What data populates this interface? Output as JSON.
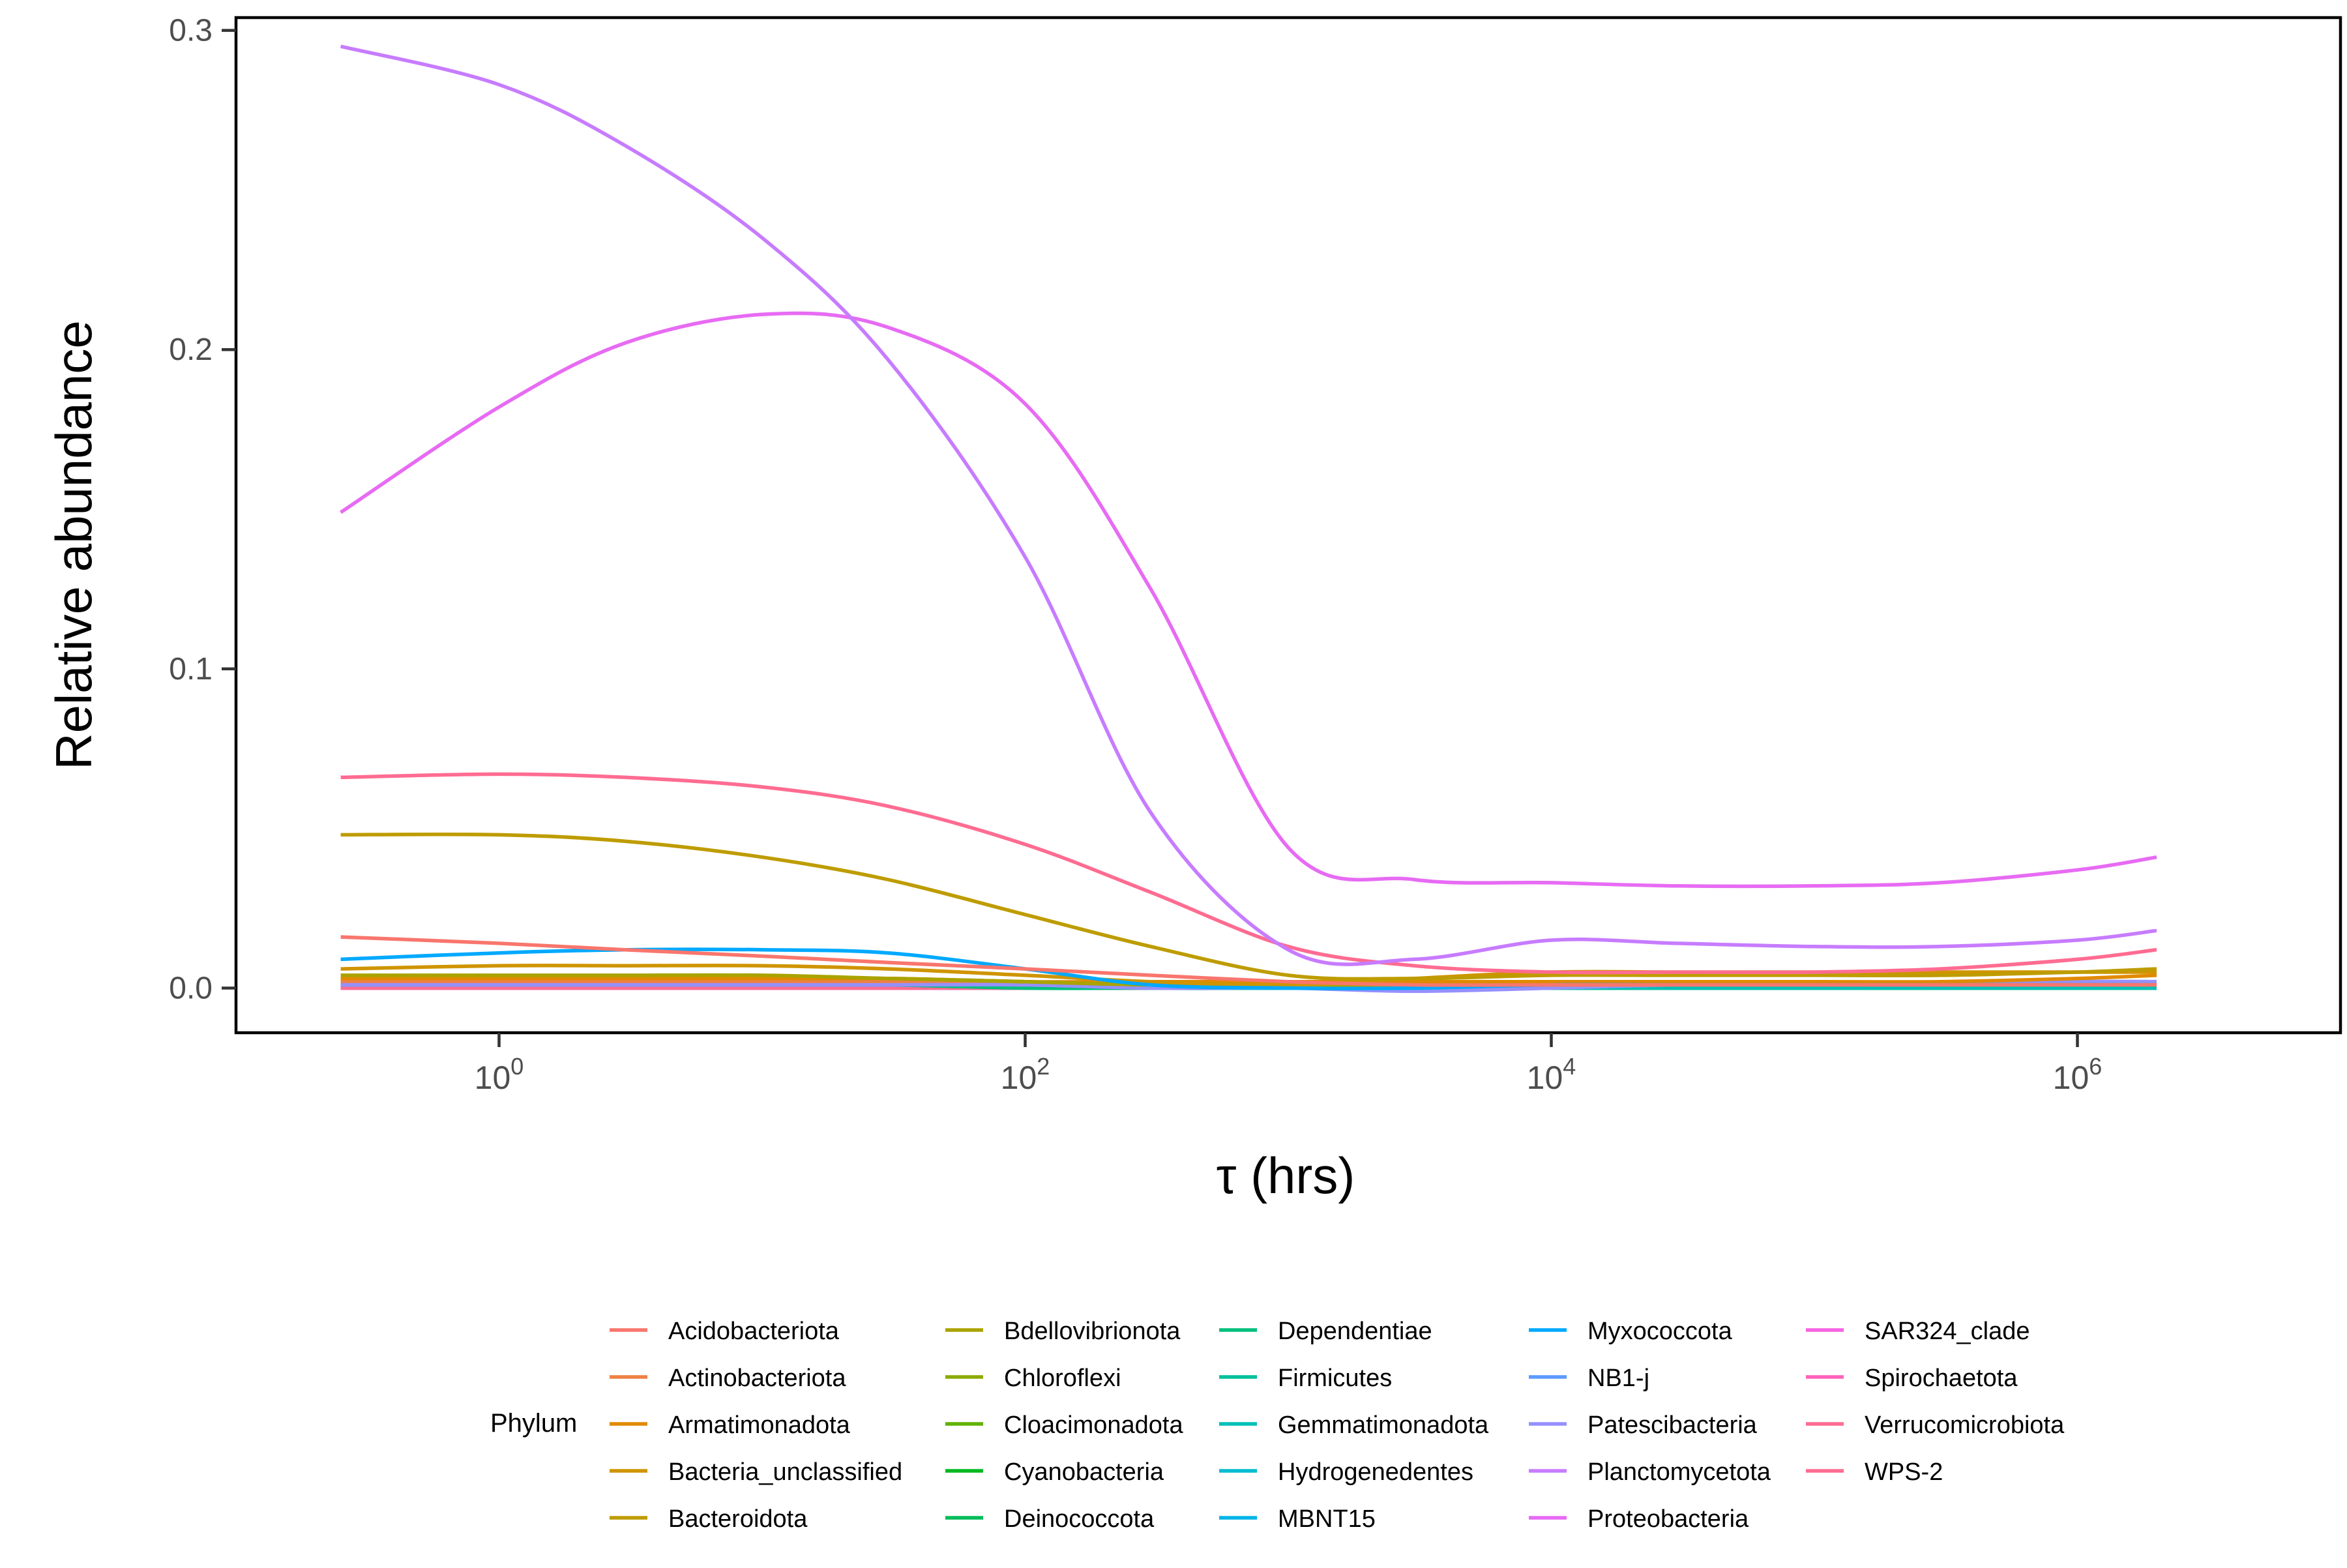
{
  "chart_data": {
    "type": "line",
    "xlabel": "τ (hrs)",
    "ylabel": "Relative abundance",
    "xscale": "log10",
    "xlim": [
      0.1,
      10000000
    ],
    "ylim": [
      -0.014,
      0.304
    ],
    "x_ticks": [
      {
        "value": 1,
        "base": "10",
        "exp": "0"
      },
      {
        "value": 100,
        "base": "10",
        "exp": "2"
      },
      {
        "value": 10000,
        "base": "10",
        "exp": "4"
      },
      {
        "value": 1000000,
        "base": "10",
        "exp": "6"
      }
    ],
    "y_ticks": [
      {
        "value": 0.0,
        "label": "0.0"
      },
      {
        "value": 0.1,
        "label": "0.1"
      },
      {
        "value": 0.2,
        "label": "0.2"
      },
      {
        "value": 0.3,
        "label": "0.3"
      }
    ],
    "grid": false,
    "legend": {
      "title": "Phylum",
      "placement": "bottom"
    },
    "x": [
      0.25,
      1,
      3,
      10,
      30,
      100,
      300,
      1000,
      3000,
      10000,
      30000,
      100000,
      300000,
      1000000,
      2000000
    ],
    "series": [
      {
        "name": "Acidobacteriota",
        "color": "#F8766D",
        "values": [
          0.016,
          0.014,
          0.012,
          0.01,
          0.008,
          0.006,
          0.004,
          0.002,
          0.001,
          0.001,
          0.001,
          0.001,
          0.001,
          0.001,
          0.001
        ]
      },
      {
        "name": "Actinobacteriota",
        "color": "#EE8044",
        "values": [
          0.002,
          0.002,
          0.002,
          0.002,
          0.002,
          0.001,
          0.001,
          0.001,
          0.001,
          0.001,
          0.001,
          0.001,
          0.001,
          0.001,
          0.001
        ]
      },
      {
        "name": "Armatimonadota",
        "color": "#E18A00",
        "values": [
          0.003,
          0.003,
          0.003,
          0.003,
          0.003,
          0.002,
          0.002,
          0.002,
          0.002,
          0.002,
          0.002,
          0.002,
          0.002,
          0.003,
          0.004
        ]
      },
      {
        "name": "Bacteria_unclassified",
        "color": "#CF9400",
        "values": [
          0.006,
          0.007,
          0.007,
          0.007,
          0.006,
          0.004,
          0.002,
          0.001,
          0.003,
          0.005,
          0.005,
          0.005,
          0.005,
          0.005,
          0.005
        ]
      },
      {
        "name": "Bacteroidota",
        "color": "#BE9C00",
        "values": [
          0.048,
          0.048,
          0.046,
          0.041,
          0.034,
          0.023,
          0.013,
          0.004,
          0.003,
          0.004,
          0.004,
          0.004,
          0.004,
          0.005,
          0.006
        ]
      },
      {
        "name": "Bdellovibrionota",
        "color": "#AAA300",
        "values": [
          0.004,
          0.004,
          0.004,
          0.004,
          0.003,
          0.002,
          0.001,
          0.001,
          0.001,
          0.001,
          0.001,
          0.001,
          0.001,
          0.001,
          0.001
        ]
      },
      {
        "name": "Chloroflexi",
        "color": "#8CAB00",
        "values": [
          0.003,
          0.003,
          0.003,
          0.003,
          0.003,
          0.002,
          0.001,
          0.001,
          0.001,
          0.001,
          0.001,
          0.001,
          0.001,
          0.001,
          0.001
        ]
      },
      {
        "name": "Cloacimonadota",
        "color": "#60B200",
        "values": [
          0.001,
          0.001,
          0.001,
          0.001,
          0.001,
          0.001,
          0.0,
          0.0,
          0.0,
          0.0,
          0.0,
          0.0,
          0.0,
          0.0,
          0.0
        ]
      },
      {
        "name": "Cyanobacteria",
        "color": "#00B81F",
        "values": [
          0.001,
          0.001,
          0.001,
          0.001,
          0.001,
          0.001,
          0.001,
          0.0,
          0.0,
          0.0,
          0.0,
          0.0,
          0.0,
          0.0,
          0.0
        ]
      },
      {
        "name": "Deinococcota",
        "color": "#00BC59",
        "values": [
          0.0,
          0.0,
          0.0,
          0.0,
          0.0,
          0.0,
          0.0,
          0.0,
          0.0,
          0.0,
          0.0,
          0.0,
          0.0,
          0.0,
          0.0
        ]
      },
      {
        "name": "Dependentiae",
        "color": "#00BF7D",
        "values": [
          0.001,
          0.001,
          0.001,
          0.001,
          0.001,
          0.0,
          0.0,
          0.0,
          0.0,
          0.0,
          0.0,
          0.0,
          0.0,
          0.0,
          0.0
        ]
      },
      {
        "name": "Firmicutes",
        "color": "#00C19C",
        "values": [
          0.0,
          0.0,
          0.0,
          0.0,
          0.0,
          0.0,
          0.0,
          0.0,
          0.0,
          0.0,
          0.0,
          0.0,
          0.0,
          0.0,
          0.0
        ]
      },
      {
        "name": "Gemmatimonadota",
        "color": "#00C0B8",
        "values": [
          0.001,
          0.001,
          0.001,
          0.001,
          0.001,
          0.001,
          0.0,
          0.0,
          0.0,
          0.0,
          0.0,
          0.0,
          0.0,
          0.0,
          0.0
        ]
      },
      {
        "name": "Hydrogenedentes",
        "color": "#00BCD1",
        "values": [
          0.0,
          0.0,
          0.0,
          0.0,
          0.0,
          0.0,
          0.0,
          0.0,
          0.0,
          0.0,
          0.0,
          0.0,
          0.0,
          0.0,
          0.0
        ]
      },
      {
        "name": "MBNT15",
        "color": "#00B5E7",
        "values": [
          0.0,
          0.0,
          0.0,
          0.0,
          0.0,
          0.0,
          0.0,
          0.0,
          0.0,
          0.0,
          0.0,
          0.0,
          0.0,
          0.0,
          0.0
        ]
      },
      {
        "name": "Myxococcota",
        "color": "#00A9FF",
        "values": [
          0.009,
          0.011,
          0.012,
          0.012,
          0.011,
          0.006,
          0.001,
          0.0,
          0.0,
          0.001,
          0.001,
          0.001,
          0.001,
          0.001,
          0.001
        ]
      },
      {
        "name": "NB1-j",
        "color": "#5C9AFF",
        "values": [
          0.0,
          0.0,
          0.0,
          0.0,
          0.0,
          0.0,
          0.0,
          0.0,
          0.0,
          0.0,
          0.0,
          0.0,
          0.0,
          0.0,
          0.0
        ]
      },
      {
        "name": "Patescibacteria",
        "color": "#9590FF",
        "values": [
          0.001,
          0.001,
          0.001,
          0.001,
          0.001,
          0.001,
          0.0,
          0.0,
          -0.001,
          0.0,
          0.001,
          0.001,
          0.001,
          0.002,
          0.002
        ]
      },
      {
        "name": "Planctomycetota",
        "color": "#C77CFF",
        "values": [
          0.295,
          0.283,
          0.264,
          0.235,
          0.197,
          0.135,
          0.055,
          0.012,
          0.009,
          0.015,
          0.014,
          0.013,
          0.013,
          0.015,
          0.018
        ]
      },
      {
        "name": "Proteobacteria",
        "color": "#E76BF3",
        "values": [
          0.149,
          0.182,
          0.202,
          0.211,
          0.207,
          0.183,
          0.125,
          0.044,
          0.034,
          0.033,
          0.032,
          0.032,
          0.033,
          0.037,
          0.041
        ]
      },
      {
        "name": "SAR324_clade",
        "color": "#F564E3",
        "values": [
          0.0,
          0.0,
          0.0,
          0.0,
          0.0,
          0.0,
          0.0,
          0.0,
          0.0,
          0.0,
          0.0,
          0.0,
          0.0,
          0.0,
          0.0
        ]
      },
      {
        "name": "Spirochaetota",
        "color": "#FF62BC",
        "values": [
          0.0,
          0.0,
          0.0,
          0.0,
          0.0,
          0.0,
          0.0,
          0.0,
          0.0,
          0.0,
          0.0,
          0.0,
          0.0,
          0.0,
          0.0
        ]
      },
      {
        "name": "Verrucomicrobiota",
        "color": "#FF6C91",
        "values": [
          0.066,
          0.067,
          0.066,
          0.063,
          0.057,
          0.045,
          0.03,
          0.013,
          0.007,
          0.005,
          0.005,
          0.005,
          0.006,
          0.009,
          0.012
        ]
      },
      {
        "name": "WPS-2",
        "color": "#FF6C91",
        "values": [
          0.0,
          0.0,
          0.0,
          0.0,
          0.0,
          0.0,
          0.0,
          0.0,
          0.0,
          0.0,
          0.0,
          0.0,
          0.0,
          0.0,
          0.0
        ]
      }
    ]
  }
}
